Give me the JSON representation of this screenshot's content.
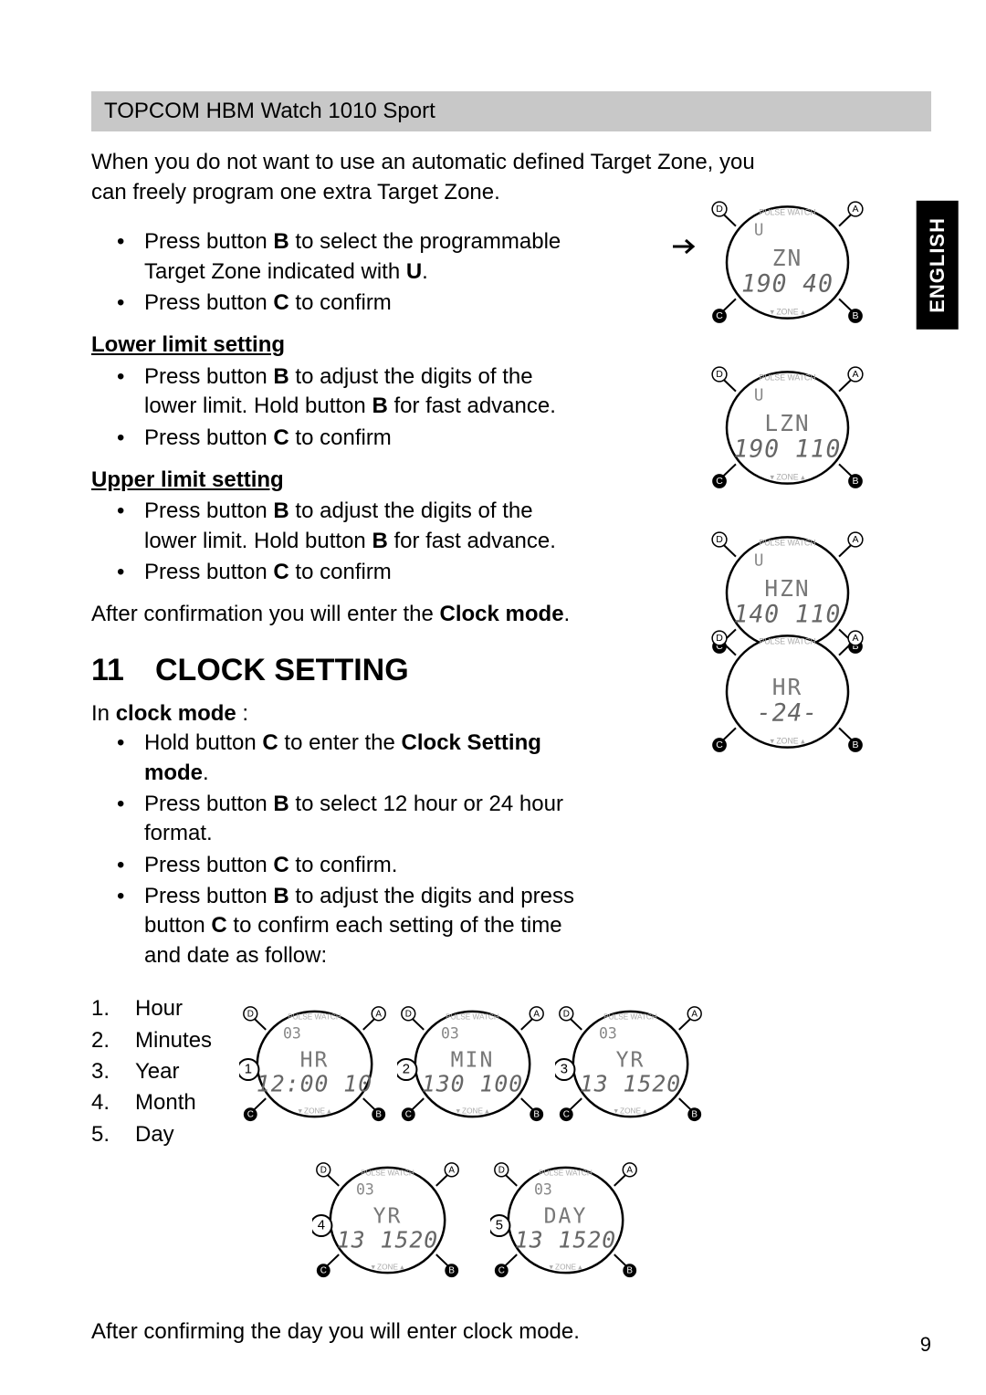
{
  "header": {
    "title": "TOPCOM HBM Watch 1010 Sport"
  },
  "sideTab": "ENGLISH",
  "intro": "When you do not want to use an automatic defined Target Zone, you can freely program one extra Target Zone.",
  "targetZone": {
    "bullets": [
      {
        "pre": "Press button ",
        "bold1": "B",
        "mid": " to select the programmable Target Zone indicated with ",
        "bold2": "U",
        "post": "."
      },
      {
        "pre": "Press button ",
        "bold1": "C",
        "mid": " to confirm",
        "bold2": "",
        "post": ""
      }
    ]
  },
  "lower": {
    "heading": "Lower limit setting",
    "bullets": [
      {
        "pre": "Press button ",
        "bold1": "B",
        "mid": " to adjust the digits of the lower limit. Hold button ",
        "bold2": "B",
        "post": " for fast advance."
      },
      {
        "pre": "Press button ",
        "bold1": "C",
        "mid": " to confirm",
        "bold2": "",
        "post": ""
      }
    ]
  },
  "upper": {
    "heading": "Upper limit setting",
    "bullets": [
      {
        "pre": "Press button ",
        "bold1": "B",
        "mid": " to adjust the digits of the lower limit. Hold button ",
        "bold2": "B",
        "post": " for fast advance."
      },
      {
        "pre": "Press button ",
        "bold1": "C",
        "mid": " to confirm",
        "bold2": "",
        "post": ""
      }
    ]
  },
  "afterConfirm": {
    "pre": "After confirmation you will enter the ",
    "bold": "Clock mode",
    "post": "."
  },
  "chapter": {
    "num": "11",
    "title": "CLOCK SETTING"
  },
  "clockIntro": {
    "pre": "In ",
    "bold": "clock mode",
    "post": " :"
  },
  "clockBullets": [
    {
      "pre": "Hold button ",
      "bold1": "C",
      "mid": " to enter the ",
      "bold2": "Clock Setting mode",
      "post": "."
    },
    {
      "pre": "Press button ",
      "bold1": "B",
      "mid": " to select 12 hour or 24 hour format.",
      "bold2": "",
      "post": ""
    },
    {
      "pre": "Press button ",
      "bold1": "C",
      "mid": " to confirm.",
      "bold2": "",
      "post": ""
    },
    {
      "pre": "Press button ",
      "bold1": "B",
      "mid": " to adjust the digits and press button ",
      "bold2": "C",
      "post": " to confirm each setting of the time and date as follow:"
    }
  ],
  "numbered": [
    {
      "n": "1.",
      "label": "Hour"
    },
    {
      "n": "2.",
      "label": "Minutes"
    },
    {
      "n": "3.",
      "label": "Year"
    },
    {
      "n": "4.",
      "label": "Month"
    },
    {
      "n": "5.",
      "label": "Day"
    }
  ],
  "afterDay": "After confirming the day you will enter clock mode.",
  "pageNumber": "9",
  "watches": {
    "zn": {
      "upper": "U",
      "line1": "ZN",
      "line2": "190  40"
    },
    "lzn": {
      "upper": "U",
      "line1": "LZN",
      "line2": "190 110"
    },
    "hzn": {
      "upper": "U",
      "line1": "HZN",
      "line2": "140 110"
    },
    "hr24": {
      "upper": "",
      "line1": "HR",
      "line2": "-24-"
    },
    "hr": {
      "upper": "03",
      "line1": "HR",
      "line2": "12:00 10"
    },
    "min": {
      "upper": "03",
      "line1": "MIN",
      "line2": "130 100"
    },
    "yr1": {
      "upper": "03",
      "line1": "YR",
      "line2": "13 1520"
    },
    "yr2": {
      "upper": "03",
      "line1": "YR",
      "line2": "13 1520"
    },
    "day": {
      "upper": "03",
      "line1": "DAY",
      "line2": "13 1520"
    }
  },
  "labels": {
    "A": "A",
    "B": "B",
    "C": "C",
    "D": "D"
  },
  "colors": {
    "bg": "#ffffff",
    "text": "#000000",
    "headerBg": "#c8c8c8",
    "tabBg": "#000000",
    "tabText": "#ffffff",
    "watchStroke": "#000000",
    "watchGrey": "#888888"
  }
}
